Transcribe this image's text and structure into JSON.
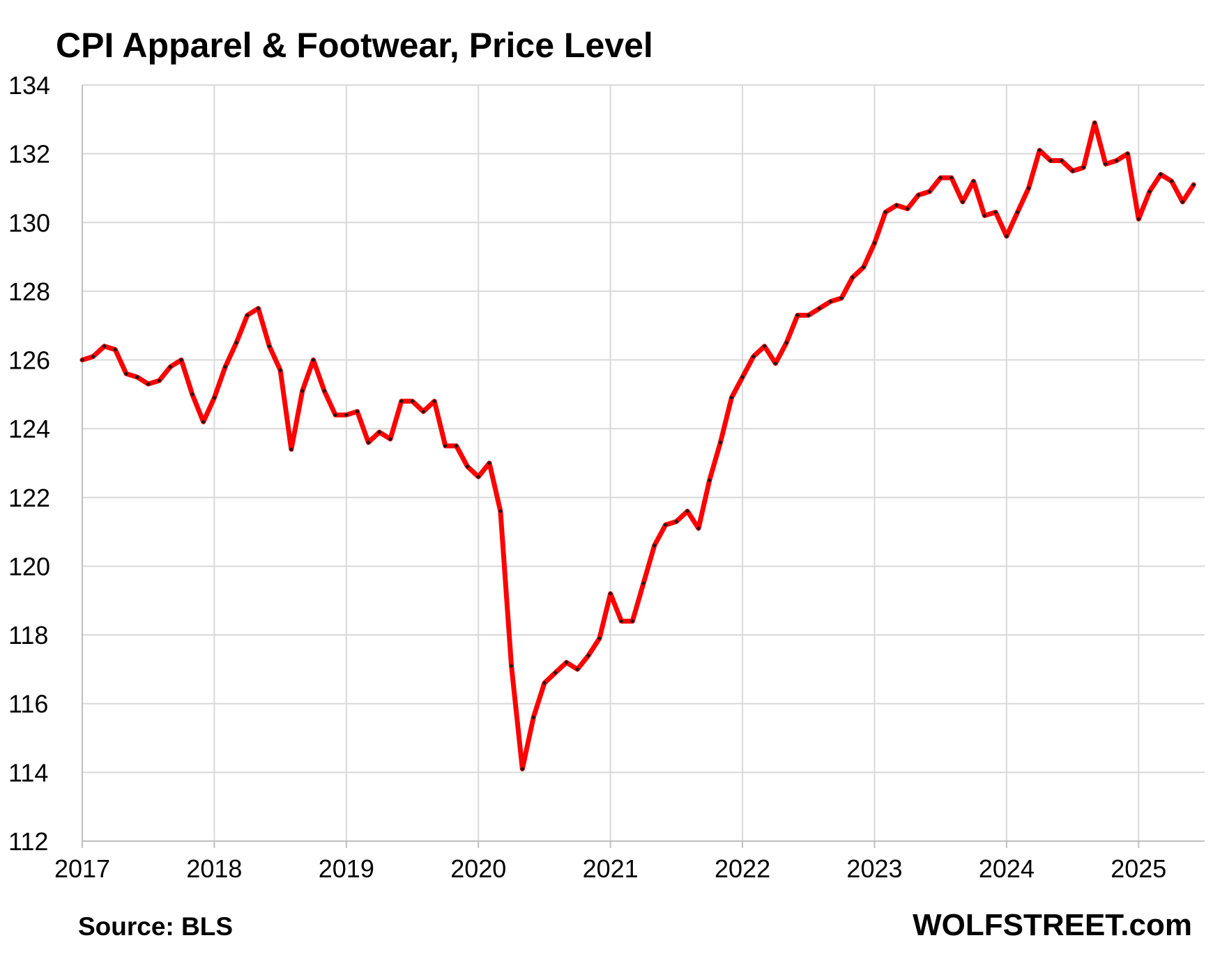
{
  "chart_data": {
    "type": "line",
    "title": "CPI Apparel & Footwear, Price Level",
    "source": "Source: BLS",
    "brand": "WOLFSTREET.com",
    "xlabel": "",
    "ylabel": "",
    "xlim": [
      2017,
      2025.5
    ],
    "ylim": [
      112,
      134
    ],
    "y_ticks": [
      "112",
      "114",
      "116",
      "118",
      "120",
      "122",
      "124",
      "126",
      "128",
      "130",
      "132",
      "134"
    ],
    "x_ticks": [
      "2017",
      "2018",
      "2019",
      "2020",
      "2021",
      "2022",
      "2023",
      "2024",
      "2025"
    ],
    "grid": true,
    "line_color": "#ff0000",
    "marker_color": "#1a1a1a",
    "series": [
      {
        "x": [
          2017.0,
          2017.083,
          2017.167,
          2017.25,
          2017.333,
          2017.417,
          2017.5,
          2017.583,
          2017.667,
          2017.75,
          2017.833,
          2017.917,
          2018.0,
          2018.083,
          2018.167,
          2018.25,
          2018.333,
          2018.417,
          2018.5,
          2018.583,
          2018.667,
          2018.75,
          2018.833,
          2018.917,
          2019.0,
          2019.083,
          2019.167,
          2019.25,
          2019.333,
          2019.417,
          2019.5,
          2019.583,
          2019.667,
          2019.75,
          2019.833,
          2019.917,
          2020.0,
          2020.083,
          2020.167,
          2020.25,
          2020.333,
          2020.417,
          2020.5,
          2020.583,
          2020.667,
          2020.75,
          2020.833,
          2020.917,
          2021.0,
          2021.083,
          2021.167,
          2021.25,
          2021.333,
          2021.417,
          2021.5,
          2021.583,
          2021.667,
          2021.75,
          2021.833,
          2021.917,
          2022.0,
          2022.083,
          2022.167,
          2022.25,
          2022.333,
          2022.417,
          2022.5,
          2022.583,
          2022.667,
          2022.75,
          2022.833,
          2022.917,
          2023.0,
          2023.083,
          2023.167,
          2023.25,
          2023.333,
          2023.417,
          2023.5,
          2023.583,
          2023.667,
          2023.75,
          2023.833,
          2023.917,
          2024.0,
          2024.083,
          2024.167,
          2024.25,
          2024.333,
          2024.417,
          2024.5,
          2024.583,
          2024.667,
          2024.75,
          2024.833,
          2024.917,
          2025.0,
          2025.083,
          2025.167,
          2025.25,
          2025.333,
          2025.417
        ],
        "y": [
          126.0,
          126.1,
          126.4,
          126.3,
          125.6,
          125.5,
          125.3,
          125.4,
          125.8,
          126.0,
          125.0,
          124.2,
          124.9,
          125.8,
          126.5,
          127.3,
          127.5,
          126.4,
          125.7,
          123.4,
          125.1,
          126.0,
          125.1,
          124.4,
          124.4,
          124.5,
          123.6,
          123.9,
          123.7,
          124.8,
          124.8,
          124.5,
          124.8,
          123.5,
          123.5,
          122.9,
          122.6,
          123.0,
          121.6,
          117.1,
          114.1,
          115.6,
          116.6,
          116.9,
          117.2,
          117.0,
          117.4,
          117.9,
          119.2,
          118.4,
          118.4,
          119.5,
          120.6,
          121.2,
          121.3,
          121.6,
          121.1,
          122.5,
          123.6,
          124.9,
          125.5,
          126.1,
          126.4,
          125.9,
          126.5,
          127.3,
          127.3,
          127.5,
          127.7,
          127.8,
          128.4,
          128.7,
          129.4,
          130.3,
          130.5,
          130.4,
          130.8,
          130.9,
          131.3,
          131.3,
          130.6,
          131.2,
          130.2,
          130.3,
          129.6,
          130.3,
          131.0,
          132.1,
          131.8,
          131.8,
          131.5,
          131.6,
          132.9,
          131.7,
          131.8,
          132.0,
          130.1,
          130.9,
          131.4,
          131.2,
          130.6,
          131.1
        ]
      }
    ]
  }
}
